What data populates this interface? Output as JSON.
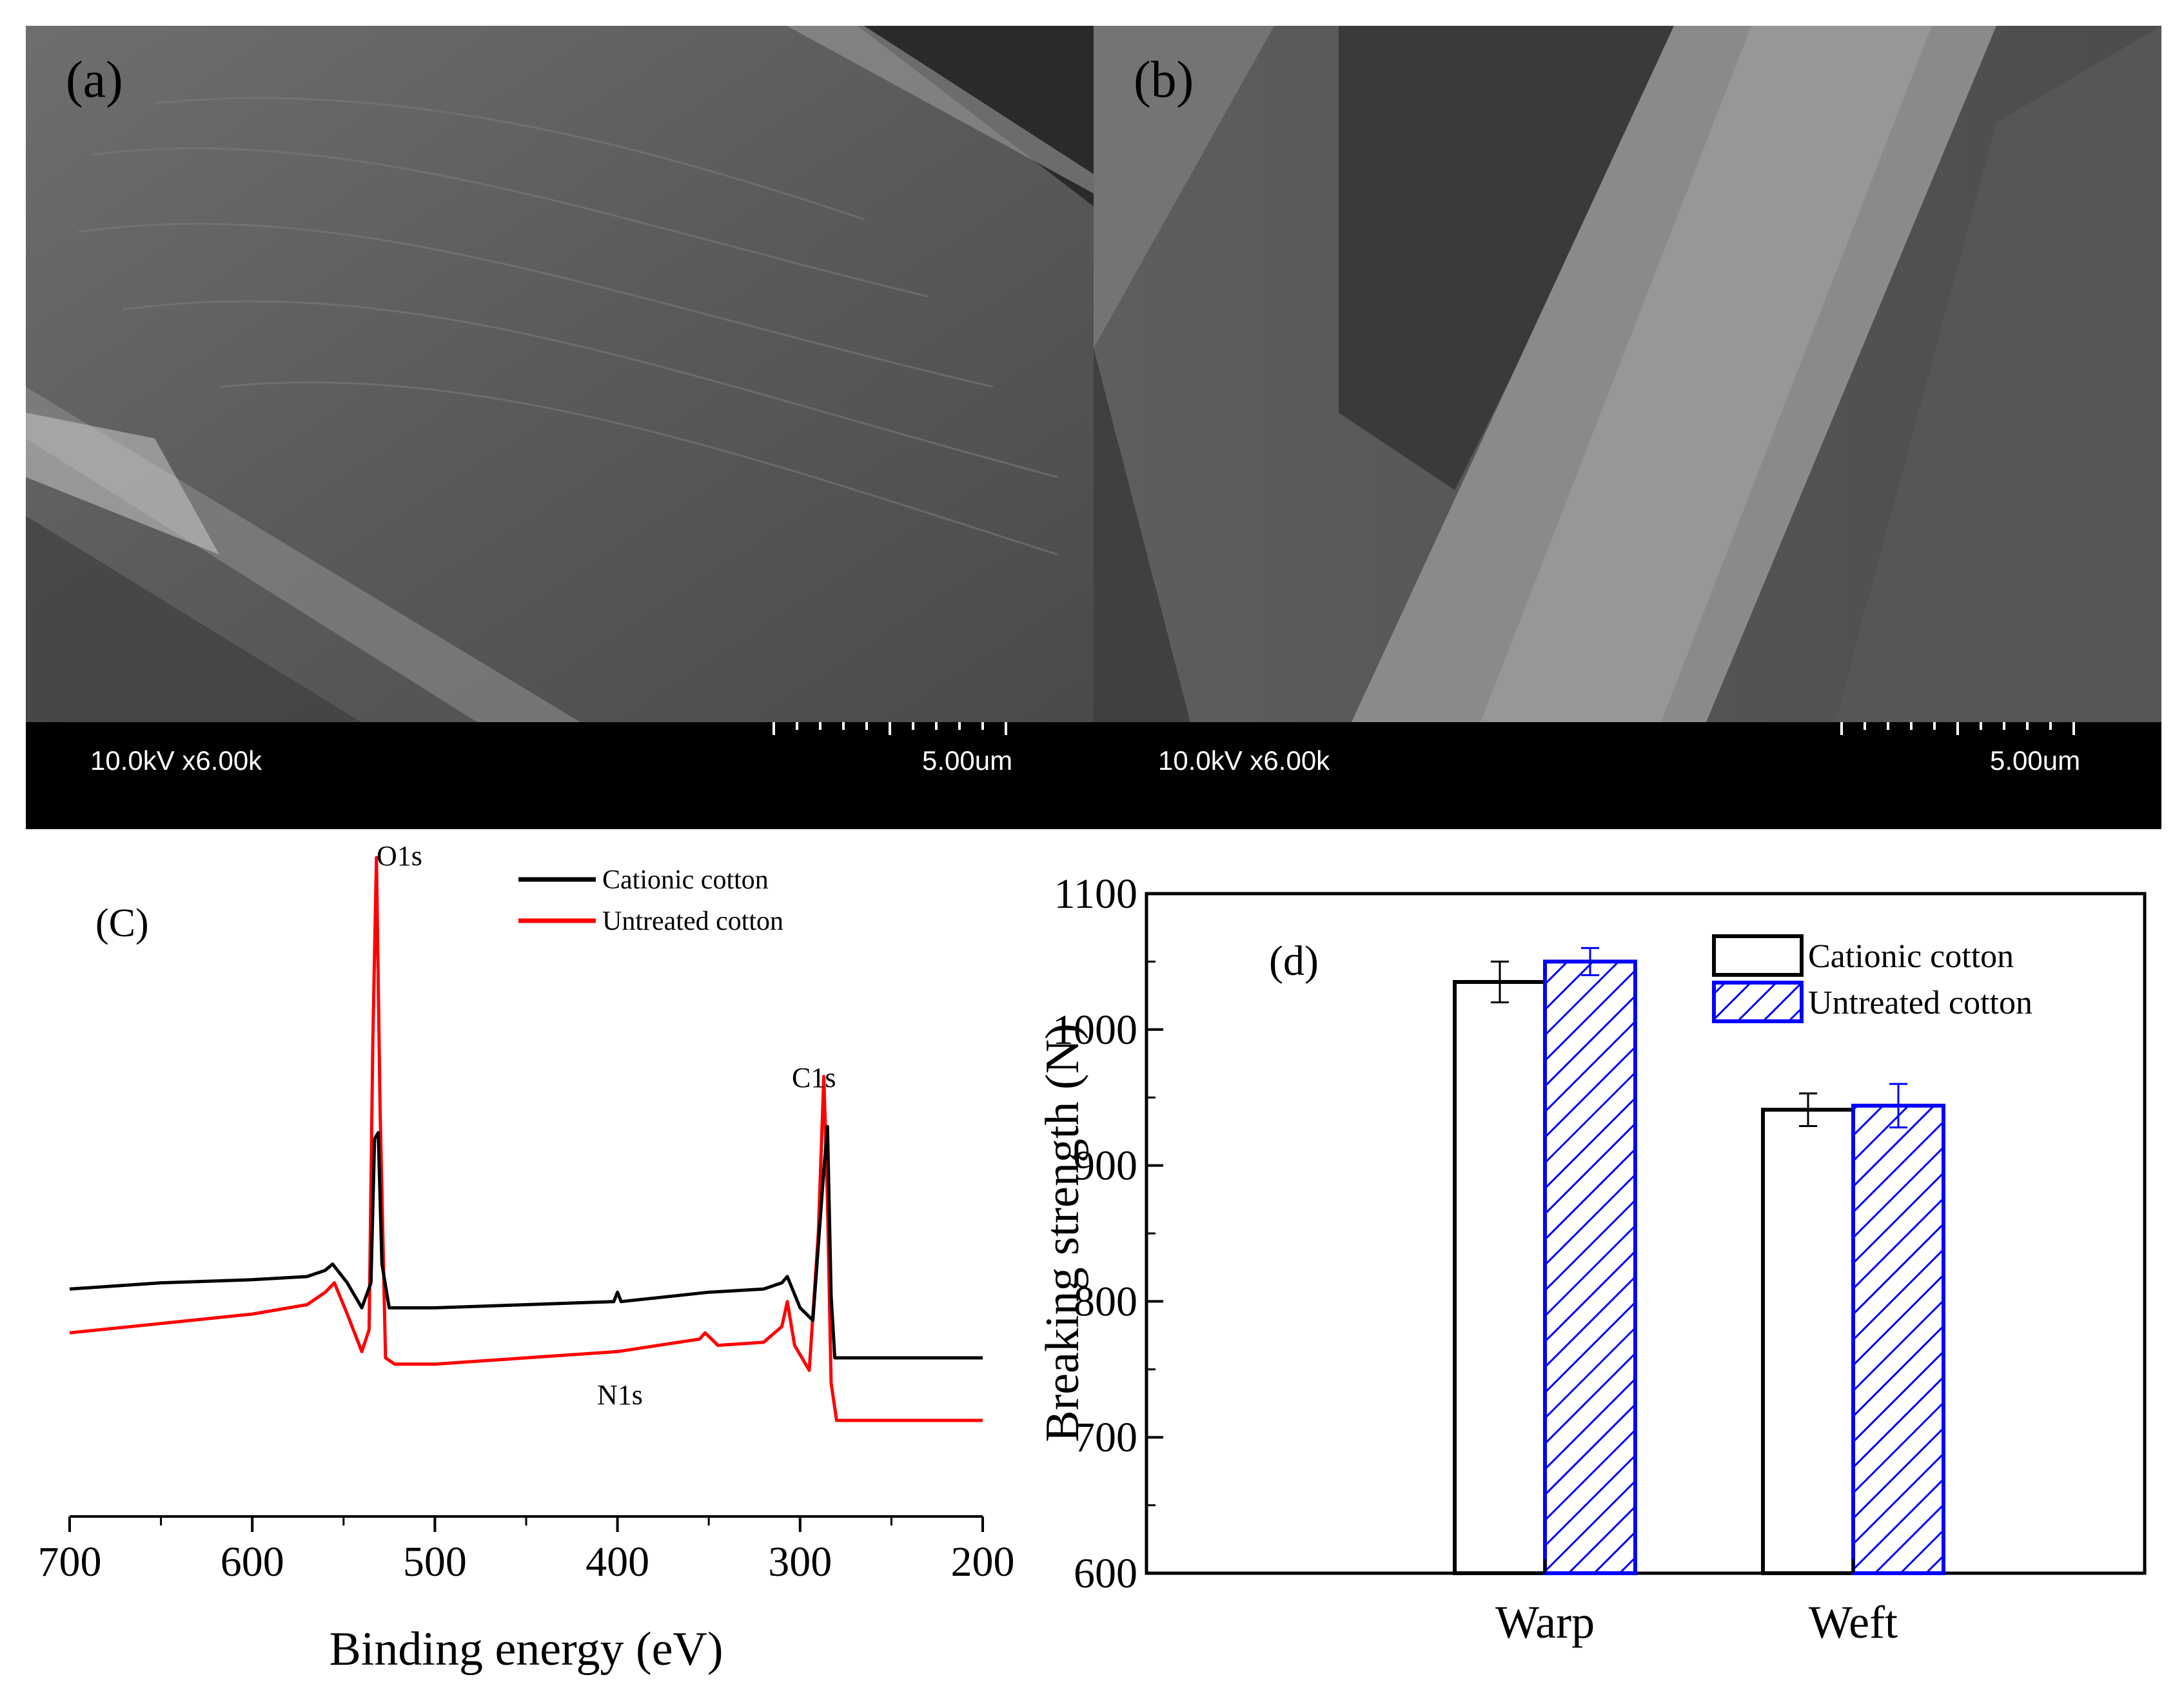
{
  "panels": {
    "a": {
      "label": "(a)",
      "info": "10.0kV x6.00k",
      "scale": "5.00um"
    },
    "b": {
      "label": "(b)",
      "info": "10.0kV x6.00k",
      "scale": "5.00um"
    }
  },
  "chart_data": [
    {
      "type": "line",
      "panel_label": "(C)",
      "xlabel": "Binding energy (eV)",
      "ylabel": "",
      "xlim": [
        700,
        200
      ],
      "x_ticks": [
        700,
        600,
        500,
        400,
        300,
        200
      ],
      "legend": {
        "placement": "top-center",
        "entries": [
          "Cationic cotton",
          "Untreated cotton"
        ]
      },
      "annotations": [
        "O1s",
        "C1s",
        "N1s"
      ],
      "series": [
        {
          "name": "Untreated cotton",
          "color": "#ff0000",
          "x": [
            700,
            650,
            600,
            570,
            560,
            555,
            548,
            540,
            536,
            534,
            532,
            530,
            527,
            522,
            500,
            450,
            400,
            355,
            352,
            345,
            320,
            310,
            307,
            303,
            295,
            290,
            287,
            285,
            283,
            280,
            270,
            250,
            230,
            200
          ],
          "y": [
            0.24,
            0.255,
            0.27,
            0.285,
            0.305,
            0.32,
            0.27,
            0.21,
            0.245,
            0.7,
            1.0,
            0.6,
            0.2,
            0.19,
            0.19,
            0.2,
            0.21,
            0.23,
            0.24,
            0.22,
            0.225,
            0.25,
            0.29,
            0.22,
            0.18,
            0.4,
            0.65,
            0.45,
            0.16,
            0.1,
            0.1,
            0.1,
            0.1,
            0.1
          ]
        },
        {
          "name": "Cationic cotton",
          "color": "#000000",
          "x": [
            700,
            650,
            600,
            570,
            560,
            556,
            548,
            540,
            535,
            533,
            531,
            529,
            525,
            500,
            450,
            402,
            400,
            398,
            350,
            320,
            310,
            307,
            300,
            293,
            287,
            285,
            283,
            281,
            275,
            250,
            200
          ],
          "y": [
            0.31,
            0.32,
            0.325,
            0.33,
            0.34,
            0.35,
            0.32,
            0.28,
            0.32,
            0.55,
            0.56,
            0.35,
            0.28,
            0.28,
            0.285,
            0.29,
            0.305,
            0.29,
            0.305,
            0.31,
            0.32,
            0.33,
            0.28,
            0.26,
            0.5,
            0.57,
            0.3,
            0.2,
            0.2,
            0.2,
            0.2
          ]
        }
      ]
    },
    {
      "type": "bar",
      "panel_label": "(d)",
      "categories": [
        "Warp",
        "Weft"
      ],
      "xlabel": "",
      "ylabel": "Breaking strength (N)",
      "ylim": [
        600,
        1100
      ],
      "y_ticks": [
        600,
        700,
        800,
        900,
        1000,
        1100
      ],
      "legend": {
        "placement": "top-right",
        "entries": [
          "Cationic cotton",
          "Untreated cotton"
        ]
      },
      "series": [
        {
          "name": "Cationic cotton",
          "values": [
            1035,
            941
          ],
          "errors": [
            15,
            12
          ],
          "fill": "#ffffff",
          "stroke": "#000000",
          "pattern": "none"
        },
        {
          "name": "Untreated cotton",
          "values": [
            1050,
            944
          ],
          "errors": [
            10,
            16
          ],
          "fill": "#ffffff",
          "stroke": "#0000ff",
          "pattern": "hatch"
        }
      ]
    }
  ]
}
